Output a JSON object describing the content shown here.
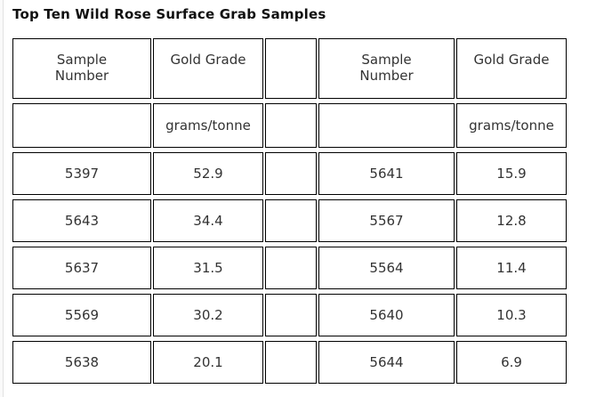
{
  "title": "Top Ten Wild Rose Surface Grab Samples",
  "table": {
    "column_headers": [
      "Sample Number",
      "Gold Grade",
      "",
      "Sample Number",
      "Gold Grade"
    ],
    "units_row": [
      "",
      "grams/tonne",
      "",
      "",
      "grams/tonne"
    ],
    "rows": [
      [
        "5397",
        "52.9",
        "",
        "5641",
        "15.9"
      ],
      [
        "5643",
        "34.4",
        "",
        "5567",
        "12.8"
      ],
      [
        "5637",
        "31.5",
        "",
        "5564",
        "11.4"
      ],
      [
        "5569",
        "30.2",
        "",
        "5640",
        "10.3"
      ],
      [
        "5638",
        "20.1",
        "",
        "5644",
        "6.9"
      ]
    ]
  }
}
